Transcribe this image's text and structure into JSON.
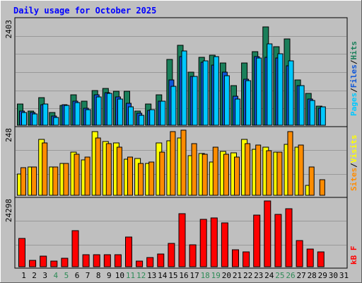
{
  "title": "Daily usage for October 2025",
  "colors": {
    "hits": "#1a7f5a",
    "files": "#0f57d9",
    "pages": "#00c8ff",
    "visits": "#ffff00",
    "sites": "#ff8c00",
    "kbytes": "#ff0000",
    "weekend": "#2e8b57",
    "weekday": "#000000",
    "panel": "#bfbfbf",
    "grid": "#999999",
    "title": "#0000ff"
  },
  "chart_data": [
    {
      "type": "bar",
      "panel": "hits_files_pages",
      "max_label": "2403",
      "ylim": [
        0,
        2403
      ],
      "categories": [
        "1",
        "2",
        "3",
        "4",
        "5",
        "6",
        "7",
        "8",
        "9",
        "10",
        "11",
        "12",
        "13",
        "14",
        "15",
        "16",
        "17",
        "18",
        "19",
        "20",
        "21",
        "22",
        "23",
        "24",
        "25",
        "26",
        "27",
        "28",
        "29",
        "30",
        "31"
      ],
      "series": [
        {
          "name": "Hits",
          "values": [
            487,
            319,
            640,
            302,
            456,
            700,
            548,
            807,
            853,
            784,
            784,
            325,
            487,
            700,
            1522,
            1850,
            1233,
            1568,
            1614,
            1432,
            913,
            1431,
            1705,
            2279,
            1810,
            2001,
            1050,
            739,
            441,
            null,
            null
          ]
        },
        {
          "name": "Files",
          "values": [
            319,
            291,
            472,
            210,
            472,
            548,
            400,
            700,
            745,
            650,
            507,
            274,
            350,
            548,
            1050,
            1583,
            1127,
            1462,
            1384,
            1233,
            670,
            1065,
            1583,
            1569,
            1552,
            1370,
            920,
            607,
            400,
            null,
            null
          ]
        },
        {
          "name": "Pages",
          "values": [
            288,
            260,
            487,
            182,
            456,
            517,
            366,
            652,
            730,
            610,
            426,
            228,
            366,
            548,
            891,
            1721,
            1127,
            1492,
            1584,
            1143,
            609,
            1034,
            1554,
            1888,
            1659,
            1492,
            913,
            579,
            419,
            null,
            null
          ]
        }
      ]
    },
    {
      "type": "bar",
      "panel": "visits_sites",
      "max_label": "248",
      "ylim": [
        0,
        248
      ],
      "categories": [
        "1",
        "2",
        "3",
        "4",
        "5",
        "6",
        "7",
        "8",
        "9",
        "10",
        "11",
        "12",
        "13",
        "14",
        "15",
        "16",
        "17",
        "18",
        "19",
        "20",
        "21",
        "22",
        "23",
        "24",
        "25",
        "26",
        "27",
        "28",
        "29",
        "30",
        "31"
      ],
      "series": [
        {
          "name": "Visits",
          "values": [
            82,
            109,
            214,
            109,
            122,
            164,
            136,
            242,
            205,
            200,
            138,
            141,
            122,
            200,
            207,
            218,
            151,
            160,
            127,
            166,
            162,
            214,
            176,
            182,
            164,
            195,
            182,
            39,
            null,
            null,
            null
          ]
        },
        {
          "name": "Sites",
          "values": [
            104,
            109,
            200,
            109,
            122,
            155,
            146,
            218,
            196,
            182,
            145,
            122,
            127,
            164,
            242,
            248,
            196,
            155,
            182,
            155,
            146,
            196,
            191,
            171,
            164,
            242,
            191,
            109,
            58,
            null,
            null
          ]
        }
      ]
    },
    {
      "type": "bar",
      "panel": "kbytes",
      "max_label": "24298",
      "ylim": [
        0,
        24298
      ],
      "categories": [
        "1",
        "2",
        "3",
        "4",
        "5",
        "6",
        "7",
        "8",
        "9",
        "10",
        "11",
        "12",
        "13",
        "14",
        "15",
        "16",
        "17",
        "18",
        "19",
        "20",
        "21",
        "22",
        "23",
        "24",
        "25",
        "26",
        "27",
        "28",
        "29",
        "30",
        "31"
      ],
      "series": [
        {
          "name": "KBytes",
          "values": [
            10365,
            2274,
            4012,
            2141,
            3209,
            13240,
            4478,
            4412,
            4412,
            4412,
            10967,
            2206,
            3344,
            4813,
            8560,
            19662,
            8025,
            17523,
            18126,
            16253,
            6152,
            5548,
            19193,
            24298,
            19461,
            21404,
            9764,
            6486,
            5617,
            null,
            null
          ]
        }
      ]
    }
  ],
  "legends": {
    "panel1": [
      "Pages",
      "/",
      "Files",
      "/",
      "Hits"
    ],
    "panel2": [
      "Sites",
      "/",
      "Visits"
    ],
    "panel3": [
      "kB F"
    ]
  },
  "weekend_days": [
    4,
    5,
    11,
    12,
    18,
    19,
    25,
    26
  ]
}
